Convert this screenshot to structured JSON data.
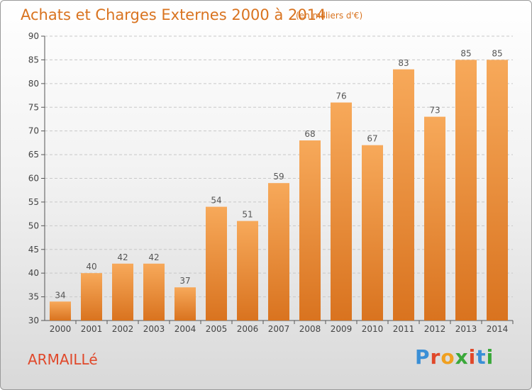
{
  "header": {
    "title": "Achats et Charges Externes 2000 à 2014",
    "subtitle": "(en milliers d'€)"
  },
  "footer": {
    "commune": "ARMAILLé",
    "logo_text": "Proxiti",
    "logo_colors": [
      "#3a8fd6",
      "#e0482a",
      "#f0a020",
      "#3aa83a",
      "#e0482a",
      "#3a8fd6",
      "#3aa83a"
    ]
  },
  "colors": {
    "bar_light": "#f7a95a",
    "bar_dark": "#d9731f",
    "title": "#d9731f",
    "grid": "#c8c8c8"
  },
  "chart_data": {
    "type": "bar",
    "title": "Achats et Charges Externes 2000 à 2014",
    "subtitle": "(en milliers d'€)",
    "categories": [
      "2000",
      "2001",
      "2002",
      "2003",
      "2004",
      "2005",
      "2006",
      "2007",
      "2008",
      "2009",
      "2010",
      "2011",
      "2012",
      "2013",
      "2014"
    ],
    "values": [
      34,
      40,
      42,
      42,
      37,
      54,
      51,
      59,
      68,
      76,
      67,
      83,
      73,
      85,
      85
    ],
    "ylim": [
      30,
      90
    ],
    "yticks": [
      30,
      35,
      40,
      45,
      50,
      55,
      60,
      65,
      70,
      75,
      80,
      85,
      90
    ],
    "xlabel": "",
    "ylabel": "",
    "grid": true,
    "data_labels": true
  }
}
